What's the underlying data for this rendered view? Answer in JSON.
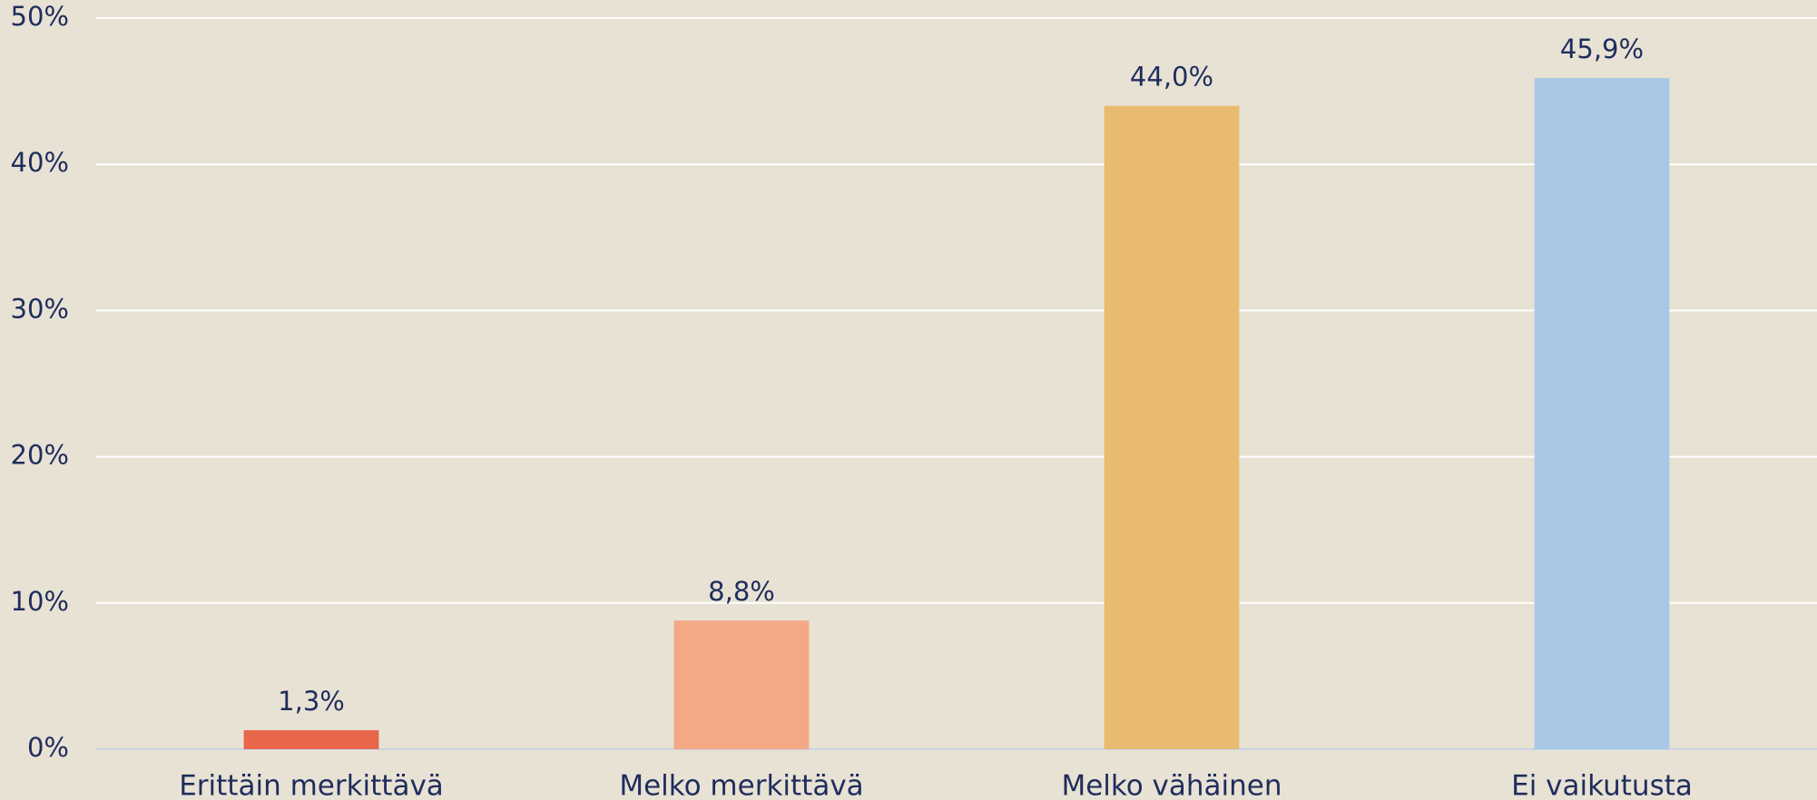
{
  "chart_data": {
    "type": "bar",
    "categories": [
      "Erittäin merkittävä",
      "Melko merkittävä",
      "Melko vähäinen",
      "Ei vaikutusta"
    ],
    "values": [
      1.3,
      8.8,
      44.0,
      45.9
    ],
    "value_labels": [
      "1,3%",
      "8,8%",
      "44,0%",
      "45,9%"
    ],
    "colors": [
      "#e8664a",
      "#f4a886",
      "#e8bb70",
      "#a8c8e6"
    ],
    "ylim": [
      0,
      50
    ],
    "yticks": [
      {
        "value": 0,
        "label": "0%"
      },
      {
        "value": 10,
        "label": "10%"
      },
      {
        "value": 20,
        "label": "20%"
      },
      {
        "value": 30,
        "label": "30%"
      },
      {
        "value": 40,
        "label": "40%"
      },
      {
        "value": 50,
        "label": "50%"
      }
    ],
    "grid": true
  }
}
